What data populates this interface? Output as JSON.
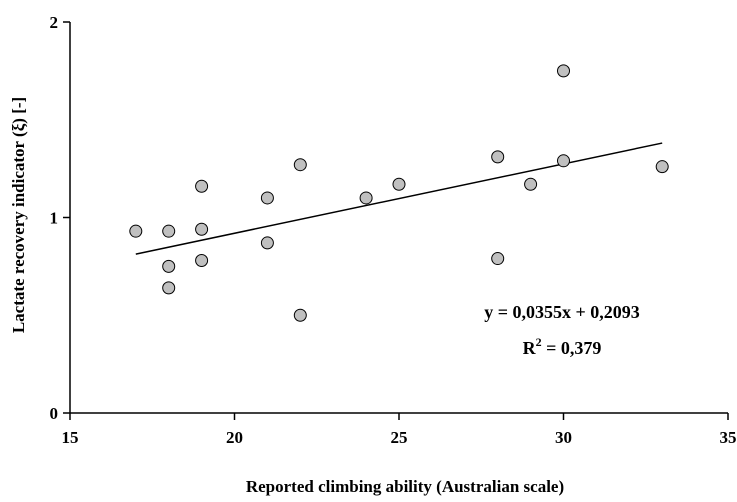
{
  "chart_data": {
    "type": "scatter",
    "xlabel": "Reported climbing ability (Australian scale)",
    "ylabel": "Lactate recovery indicator (ξ) [-]",
    "xlim": [
      15,
      35
    ],
    "ylim": [
      0,
      2
    ],
    "x_ticks": [
      "15",
      "20",
      "25",
      "30",
      "35"
    ],
    "y_ticks": [
      "0",
      "1",
      "2"
    ],
    "grid": false,
    "series": [
      {
        "points": [
          {
            "x": 17,
            "y": 0.93
          },
          {
            "x": 18,
            "y": 0.93
          },
          {
            "x": 18,
            "y": 0.75
          },
          {
            "x": 18,
            "y": 0.64
          },
          {
            "x": 19,
            "y": 1.16
          },
          {
            "x": 19,
            "y": 0.94
          },
          {
            "x": 19,
            "y": 0.78
          },
          {
            "x": 21,
            "y": 1.1
          },
          {
            "x": 21,
            "y": 0.87
          },
          {
            "x": 22,
            "y": 1.27
          },
          {
            "x": 22,
            "y": 0.5
          },
          {
            "x": 24,
            "y": 1.1
          },
          {
            "x": 25,
            "y": 1.17
          },
          {
            "x": 28,
            "y": 1.31
          },
          {
            "x": 28,
            "y": 0.79
          },
          {
            "x": 29,
            "y": 1.17
          },
          {
            "x": 30,
            "y": 1.75
          },
          {
            "x": 30,
            "y": 1.29
          },
          {
            "x": 33,
            "y": 1.26
          }
        ],
        "color": "#c0c0c0"
      }
    ],
    "trendline": {
      "slope": 0.0355,
      "intercept": 0.2093,
      "x_range": [
        17,
        33
      ]
    },
    "annotations": {
      "equation": "y = 0,0355x + 0,2093",
      "r2_label": "R",
      "r2_sup": "2",
      "r2_value": " = 0,379"
    }
  }
}
